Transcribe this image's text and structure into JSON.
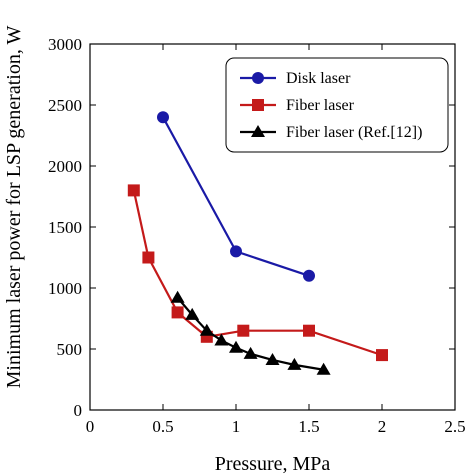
{
  "chart_data": {
    "type": "line",
    "title": "",
    "xlabel": "Pressure, MPa",
    "ylabel": "Minimum laser power for LSP generation, W",
    "xlim": [
      0,
      2.5
    ],
    "ylim": [
      0,
      3000
    ],
    "xticks": [
      0,
      0.5,
      1,
      1.5,
      2,
      2.5
    ],
    "yticks": [
      0,
      500,
      1000,
      1500,
      2000,
      2500,
      3000
    ],
    "xtick_labels": [
      "0",
      "0.5",
      "1",
      "1.5",
      "2",
      "2.5"
    ],
    "ytick_labels": [
      "0",
      "500",
      "1000",
      "1500",
      "2000",
      "2500",
      "3000"
    ],
    "grid": false,
    "legend_position": "top-right",
    "series": [
      {
        "name": "Disk laser",
        "color": "#1a1aa6",
        "marker": "circle",
        "x": [
          0.5,
          1.0,
          1.5
        ],
        "y": [
          2400,
          1300,
          1100
        ]
      },
      {
        "name": "Fiber laser",
        "color": "#c41a1a",
        "marker": "square",
        "x": [
          0.3,
          0.4,
          0.6,
          0.8,
          1.05,
          1.5,
          2.0
        ],
        "y": [
          1800,
          1250,
          800,
          600,
          650,
          650,
          450
        ]
      },
      {
        "name": "Fiber laser (Ref.[12])",
        "color": "#000000",
        "marker": "triangle",
        "x": [
          0.6,
          0.7,
          0.8,
          0.9,
          1.0,
          1.1,
          1.25,
          1.4,
          1.6
        ],
        "y": [
          920,
          780,
          650,
          570,
          510,
          460,
          410,
          370,
          330
        ]
      }
    ]
  }
}
